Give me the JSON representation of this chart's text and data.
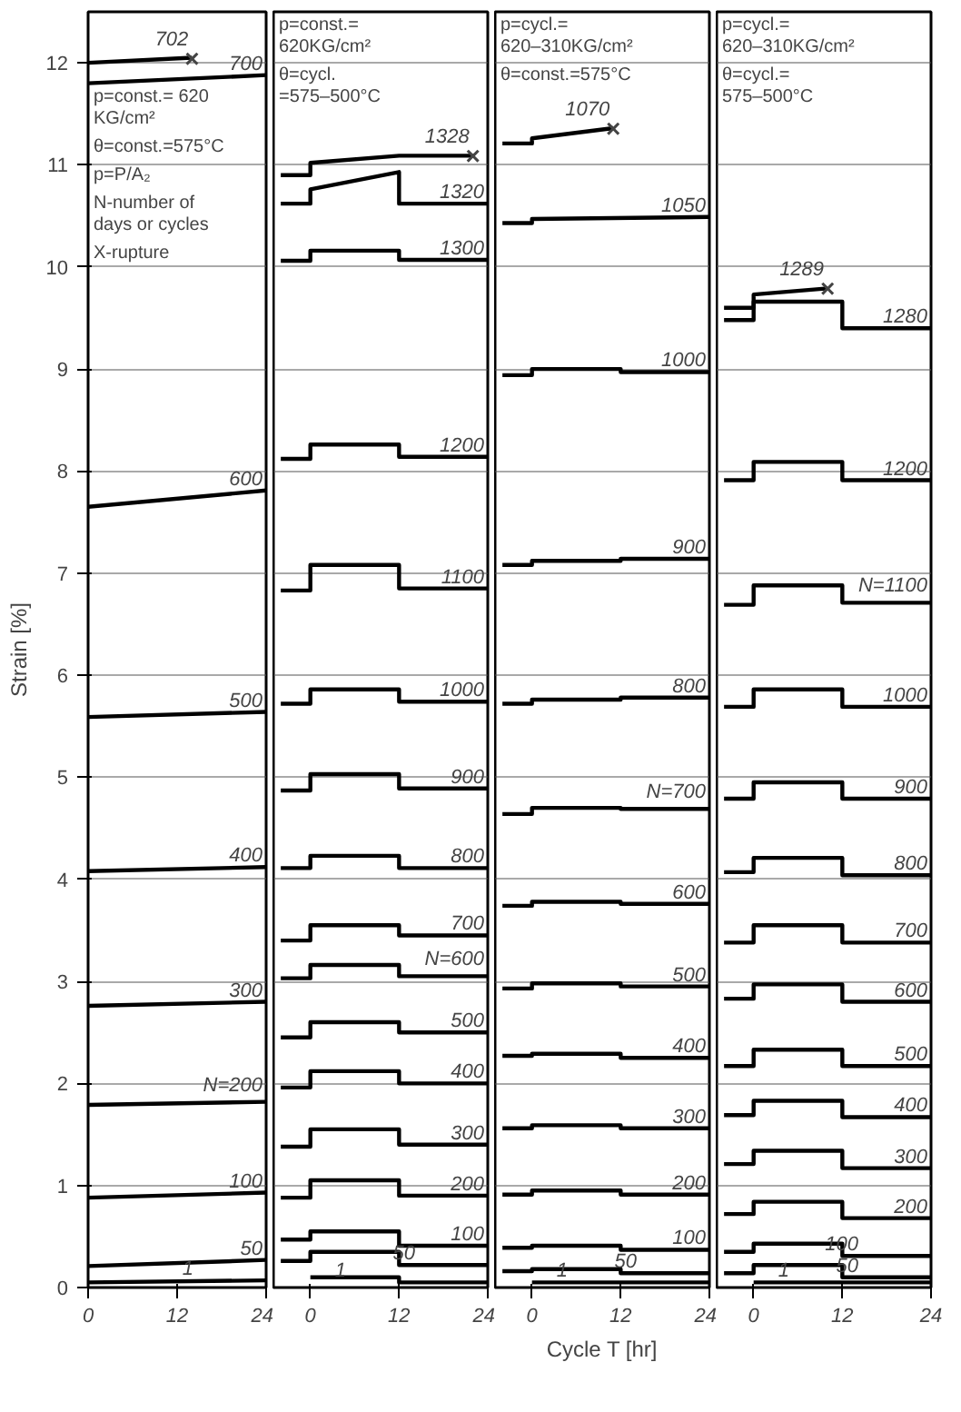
{
  "chart_data": [
    {
      "type": "line",
      "ylabel": "Strain [%]",
      "xlim": [
        0,
        24
      ],
      "xticks": [
        0,
        12,
        24
      ],
      "ylim": [
        0,
        12.5
      ],
      "yticks": [
        0,
        1,
        2,
        3,
        4,
        5,
        6,
        7,
        8,
        9,
        10,
        11,
        12
      ],
      "grid": "y",
      "marker": "none",
      "line_style": "solid",
      "annotations": [
        "p=const.= 620 KG/cm²",
        "θ=const.=575°C",
        "p=P/A₂",
        "N-number of days or cycles",
        "X-rupture",
        {
          "text": "×",
          "x": 14,
          "y": 12.05
        }
      ],
      "series": [
        {
          "name": "702",
          "color": "#000000",
          "x": [
            0,
            14
          ],
          "values": [
            12.0,
            12.05
          ]
        },
        {
          "name": "700",
          "color": "#000000",
          "x": [
            0,
            24
          ],
          "values": [
            11.8,
            11.88
          ]
        },
        {
          "name": "600",
          "color": "#000000",
          "x": [
            0,
            24
          ],
          "values": [
            7.65,
            7.81
          ]
        },
        {
          "name": "500",
          "color": "#000000",
          "x": [
            0,
            24
          ],
          "values": [
            5.59,
            5.64
          ]
        },
        {
          "name": "400",
          "color": "#000000",
          "x": [
            0,
            24
          ],
          "values": [
            4.08,
            4.12
          ]
        },
        {
          "name": "300",
          "color": "#000000",
          "x": [
            0,
            24
          ],
          "values": [
            2.76,
            2.8
          ]
        },
        {
          "name": "N=200",
          "color": "#000000",
          "x": [
            0,
            24
          ],
          "values": [
            1.79,
            1.82
          ]
        },
        {
          "name": "100",
          "color": "#000000",
          "x": [
            0,
            24
          ],
          "values": [
            0.88,
            0.93
          ]
        },
        {
          "name": "50",
          "color": "#000000",
          "x": [
            0,
            24
          ],
          "values": [
            0.21,
            0.27
          ]
        },
        {
          "name": "1",
          "color": "#000000",
          "x": [
            0,
            24
          ],
          "values": [
            0.05,
            0.07
          ]
        }
      ]
    },
    {
      "type": "line",
      "xlim": [
        -5,
        24
      ],
      "xticks": [
        0,
        12,
        24
      ],
      "ylim": [
        0,
        12.5
      ],
      "yticks": [
        0,
        1,
        2,
        3,
        4,
        5,
        6,
        7,
        8,
        9,
        10,
        11,
        12
      ],
      "grid": "y",
      "tick_labels": "x",
      "marker": "none",
      "line_style": "solid",
      "annotations": [
        "p=const.= 620KG/cm²",
        "θ=cycl. =575–500°C",
        {
          "text": "×",
          "x": 22,
          "y": 11.09
        }
      ],
      "series": [
        {
          "name": "1328",
          "color": "#000000",
          "x": [
            -4,
            0,
            0,
            12,
            22
          ],
          "values": [
            10.9,
            10.9,
            11.02,
            11.09,
            11.09
          ]
        },
        {
          "name": "1320",
          "color": "#000000",
          "x": [
            -4,
            0,
            0,
            12,
            12,
            24
          ],
          "values": [
            10.62,
            10.62,
            10.76,
            10.93,
            10.62,
            10.62
          ]
        },
        {
          "name": "1300",
          "color": "#000000",
          "x": [
            -4,
            0,
            0,
            12,
            12,
            24
          ],
          "values": [
            10.06,
            10.06,
            10.16,
            10.16,
            10.07,
            10.07
          ]
        },
        {
          "name": "1200",
          "color": "#000000",
          "x": [
            -4,
            0,
            0,
            12,
            12,
            24
          ],
          "values": [
            8.12,
            8.12,
            8.26,
            8.26,
            8.14,
            8.14
          ]
        },
        {
          "name": "1100",
          "color": "#000000",
          "x": [
            -4,
            0,
            0,
            12,
            12,
            24
          ],
          "values": [
            6.83,
            6.83,
            7.08,
            7.08,
            6.85,
            6.85
          ]
        },
        {
          "name": "1000",
          "color": "#000000",
          "x": [
            -4,
            0,
            0,
            12,
            12,
            24
          ],
          "values": [
            5.72,
            5.72,
            5.86,
            5.86,
            5.74,
            5.74
          ]
        },
        {
          "name": "900",
          "color": "#000000",
          "x": [
            -4,
            0,
            0,
            12,
            12,
            24
          ],
          "values": [
            4.87,
            4.87,
            5.03,
            5.03,
            4.89,
            4.89
          ]
        },
        {
          "name": "800",
          "color": "#000000",
          "x": [
            -4,
            0,
            0,
            12,
            12,
            24
          ],
          "values": [
            4.11,
            4.11,
            4.23,
            4.23,
            4.11,
            4.11
          ]
        },
        {
          "name": "700",
          "color": "#000000",
          "x": [
            -4,
            0,
            0,
            12,
            12,
            24
          ],
          "values": [
            3.4,
            3.4,
            3.55,
            3.55,
            3.45,
            3.45
          ]
        },
        {
          "name": "N=600",
          "color": "#000000",
          "x": [
            -4,
            0,
            0,
            12,
            12,
            24
          ],
          "values": [
            3.03,
            3.03,
            3.16,
            3.16,
            3.05,
            3.05
          ]
        },
        {
          "name": "500",
          "color": "#000000",
          "x": [
            -4,
            0,
            0,
            12,
            12,
            24
          ],
          "values": [
            2.45,
            2.45,
            2.6,
            2.6,
            2.5,
            2.5
          ]
        },
        {
          "name": "400",
          "color": "#000000",
          "x": [
            -4,
            0,
            0,
            12,
            12,
            24
          ],
          "values": [
            1.96,
            1.96,
            2.12,
            2.12,
            2.0,
            2.0
          ]
        },
        {
          "name": "300",
          "color": "#000000",
          "x": [
            -4,
            0,
            0,
            12,
            12,
            24
          ],
          "values": [
            1.38,
            1.38,
            1.55,
            1.55,
            1.4,
            1.4
          ]
        },
        {
          "name": "200",
          "color": "#000000",
          "x": [
            -4,
            0,
            0,
            12,
            12,
            24
          ],
          "values": [
            0.88,
            0.88,
            1.05,
            1.05,
            0.9,
            0.9
          ]
        },
        {
          "name": "100",
          "color": "#000000",
          "x": [
            -4,
            0,
            0,
            12,
            12,
            24
          ],
          "values": [
            0.47,
            0.47,
            0.55,
            0.55,
            0.41,
            0.41
          ]
        },
        {
          "name": "50",
          "color": "#000000",
          "x": [
            -4,
            0,
            0,
            12,
            12,
            24
          ],
          "values": [
            0.26,
            0.26,
            0.35,
            0.35,
            0.22,
            0.22
          ]
        },
        {
          "name": "1",
          "color": "#000000",
          "x": [
            0,
            12,
            12,
            24
          ],
          "values": [
            0.1,
            0.1,
            0.05,
            0.05
          ]
        }
      ]
    },
    {
      "type": "line",
      "xlabel": "Cycle T [hr]",
      "xlim": [
        -5,
        24
      ],
      "xticks": [
        0,
        12,
        24
      ],
      "ylim": [
        0,
        12.5
      ],
      "yticks": [
        0,
        1,
        2,
        3,
        4,
        5,
        6,
        7,
        8,
        9,
        10,
        11,
        12
      ],
      "grid": "y",
      "tick_labels": "x",
      "marker": "none",
      "line_style": "solid",
      "annotations": [
        "p=cycl.= 620–310KG/cm²",
        "θ=const.=575°C",
        {
          "text": "×",
          "x": 11,
          "y": 11.36
        }
      ],
      "series": [
        {
          "name": "1070",
          "color": "#000000",
          "x": [
            -4,
            0,
            0,
            11
          ],
          "values": [
            11.21,
            11.21,
            11.26,
            11.36
          ]
        },
        {
          "name": "1050",
          "color": "#000000",
          "x": [
            -4,
            0,
            0,
            24
          ],
          "values": [
            10.43,
            10.43,
            10.47,
            10.49
          ]
        },
        {
          "name": "1000",
          "color": "#000000",
          "x": [
            -4,
            0,
            0,
            12,
            12,
            24
          ],
          "values": [
            8.94,
            8.94,
            9.0,
            9.0,
            8.97,
            8.97
          ]
        },
        {
          "name": "900",
          "color": "#000000",
          "x": [
            -4,
            0,
            0,
            12,
            12,
            24
          ],
          "values": [
            7.08,
            7.08,
            7.12,
            7.12,
            7.14,
            7.14
          ]
        },
        {
          "name": "800",
          "color": "#000000",
          "x": [
            -4,
            0,
            0,
            12,
            12,
            24
          ],
          "values": [
            5.72,
            5.72,
            5.76,
            5.76,
            5.78,
            5.78
          ]
        },
        {
          "name": "N=700",
          "color": "#000000",
          "x": [
            -4,
            0,
            0,
            12,
            12,
            24
          ],
          "values": [
            4.64,
            4.64,
            4.7,
            4.7,
            4.69,
            4.69
          ]
        },
        {
          "name": "600",
          "color": "#000000",
          "x": [
            -4,
            0,
            0,
            12,
            12,
            24
          ],
          "values": [
            3.74,
            3.74,
            3.78,
            3.78,
            3.76,
            3.76
          ]
        },
        {
          "name": "500",
          "color": "#000000",
          "x": [
            -4,
            0,
            0,
            12,
            12,
            24
          ],
          "values": [
            2.93,
            2.93,
            2.98,
            2.98,
            2.95,
            2.95
          ]
        },
        {
          "name": "400",
          "color": "#000000",
          "x": [
            -4,
            0,
            0,
            12,
            12,
            24
          ],
          "values": [
            2.27,
            2.27,
            2.29,
            2.29,
            2.25,
            2.25
          ]
        },
        {
          "name": "300",
          "color": "#000000",
          "x": [
            -4,
            0,
            0,
            12,
            12,
            24
          ],
          "values": [
            1.56,
            1.56,
            1.59,
            1.59,
            1.56,
            1.56
          ]
        },
        {
          "name": "200",
          "color": "#000000",
          "x": [
            -4,
            0,
            0,
            12,
            12,
            24
          ],
          "values": [
            0.91,
            0.91,
            0.95,
            0.95,
            0.91,
            0.91
          ]
        },
        {
          "name": "100",
          "color": "#000000",
          "x": [
            -4,
            0,
            0,
            12,
            12,
            24
          ],
          "values": [
            0.39,
            0.39,
            0.41,
            0.41,
            0.37,
            0.37
          ]
        },
        {
          "name": "50",
          "color": "#000000",
          "x": [
            -4,
            0,
            0,
            12,
            12,
            24
          ],
          "values": [
            0.16,
            0.16,
            0.18,
            0.18,
            0.14,
            0.14
          ]
        },
        {
          "name": "1",
          "color": "#000000",
          "x": [
            0,
            24
          ],
          "values": [
            0.05,
            0.05
          ]
        }
      ]
    },
    {
      "type": "line",
      "xlim": [
        -5,
        24
      ],
      "xticks": [
        0,
        12,
        24
      ],
      "ylim": [
        0,
        12.5
      ],
      "yticks": [
        0,
        1,
        2,
        3,
        4,
        5,
        6,
        7,
        8,
        9,
        10,
        11,
        12
      ],
      "grid": "y",
      "tick_labels": "x",
      "marker": "none",
      "line_style": "solid",
      "annotations": [
        "p=cycl.= 620–310KG/cm²",
        "θ=cycl.= 575–500°C",
        {
          "text": "×",
          "x": 10,
          "y": 9.79
        }
      ],
      "series": [
        {
          "name": "1289",
          "color": "#000000",
          "x": [
            -4,
            0,
            0,
            10
          ],
          "values": [
            9.6,
            9.6,
            9.73,
            9.79
          ]
        },
        {
          "name": "1280",
          "color": "#000000",
          "x": [
            -4,
            0,
            0,
            12,
            12,
            24
          ],
          "values": [
            9.48,
            9.48,
            9.66,
            9.66,
            9.4,
            9.4
          ]
        },
        {
          "name": "1200",
          "color": "#000000",
          "x": [
            -4,
            0,
            0,
            12,
            12,
            24
          ],
          "values": [
            7.91,
            7.91,
            8.09,
            8.09,
            7.91,
            7.91
          ]
        },
        {
          "name": "N=1100",
          "color": "#000000",
          "x": [
            -4,
            0,
            0,
            12,
            12,
            24
          ],
          "values": [
            6.69,
            6.69,
            6.88,
            6.88,
            6.71,
            6.71
          ]
        },
        {
          "name": "1000",
          "color": "#000000",
          "x": [
            -4,
            0,
            0,
            12,
            12,
            24
          ],
          "values": [
            5.69,
            5.69,
            5.86,
            5.86,
            5.69,
            5.69
          ]
        },
        {
          "name": "900",
          "color": "#000000",
          "x": [
            -4,
            0,
            0,
            12,
            12,
            24
          ],
          "values": [
            4.79,
            4.79,
            4.95,
            4.95,
            4.79,
            4.79
          ]
        },
        {
          "name": "800",
          "color": "#000000",
          "x": [
            -4,
            0,
            0,
            12,
            12,
            24
          ],
          "values": [
            4.07,
            4.07,
            4.21,
            4.21,
            4.04,
            4.04
          ]
        },
        {
          "name": "700",
          "color": "#000000",
          "x": [
            -4,
            0,
            0,
            12,
            12,
            24
          ],
          "values": [
            3.38,
            3.38,
            3.55,
            3.55,
            3.38,
            3.38
          ]
        },
        {
          "name": "600",
          "color": "#000000",
          "x": [
            -4,
            0,
            0,
            12,
            12,
            24
          ],
          "values": [
            2.83,
            2.83,
            2.97,
            2.97,
            2.8,
            2.8
          ]
        },
        {
          "name": "500",
          "color": "#000000",
          "x": [
            -4,
            0,
            0,
            12,
            12,
            24
          ],
          "values": [
            2.17,
            2.17,
            2.33,
            2.33,
            2.17,
            2.17
          ]
        },
        {
          "name": "400",
          "color": "#000000",
          "x": [
            -4,
            0,
            0,
            12,
            12,
            24
          ],
          "values": [
            1.69,
            1.69,
            1.83,
            1.83,
            1.67,
            1.67
          ]
        },
        {
          "name": "300",
          "color": "#000000",
          "x": [
            -4,
            0,
            0,
            12,
            12,
            24
          ],
          "values": [
            1.21,
            1.21,
            1.34,
            1.34,
            1.17,
            1.17
          ]
        },
        {
          "name": "200",
          "color": "#000000",
          "x": [
            -4,
            0,
            0,
            12,
            12,
            24
          ],
          "values": [
            0.72,
            0.72,
            0.84,
            0.84,
            0.68,
            0.68
          ]
        },
        {
          "name": "100",
          "color": "#000000",
          "x": [
            -4,
            0,
            0,
            12,
            12,
            24
          ],
          "values": [
            0.35,
            0.35,
            0.43,
            0.43,
            0.31,
            0.31
          ]
        },
        {
          "name": "50",
          "color": "#000000",
          "x": [
            -4,
            0,
            0,
            12,
            12,
            24
          ],
          "values": [
            0.14,
            0.14,
            0.22,
            0.22,
            0.1,
            0.1
          ]
        },
        {
          "name": "1",
          "color": "#000000",
          "x": [
            0,
            24
          ],
          "values": [
            0.05,
            0.05
          ]
        }
      ]
    }
  ]
}
